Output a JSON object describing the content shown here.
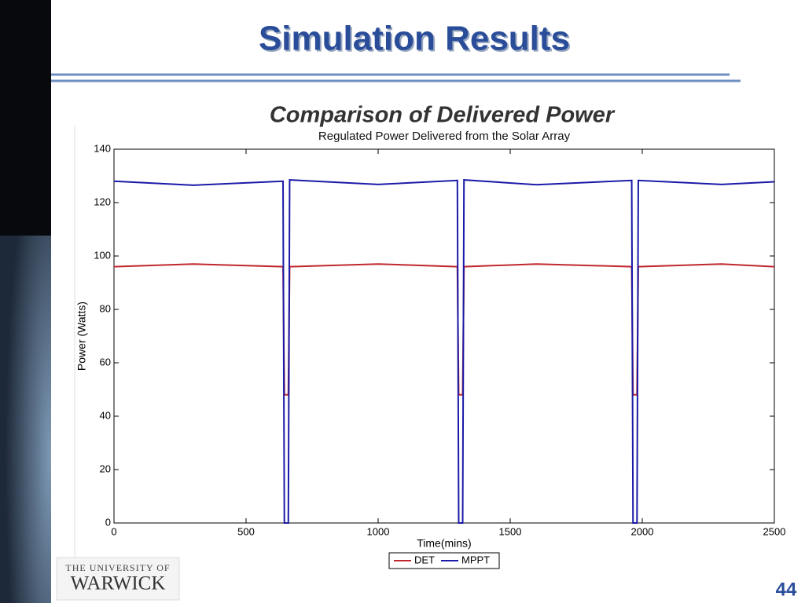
{
  "slide": {
    "title": "Simulation Results",
    "subtitle": "Comparison of Delivered Power",
    "logo_line1": "THE UNIVERSITY OF",
    "logo_line2": "WARWICK",
    "page_number": "44"
  },
  "chart_data": {
    "type": "line",
    "title": "Regulated Power Delivered from the Solar Array",
    "x_label": "Time(mins)",
    "y_label": "Power (Watts)",
    "x": [
      0,
      300,
      640,
      645,
      660,
      665,
      1000,
      1300,
      1305,
      1320,
      1325,
      1600,
      1960,
      1965,
      1980,
      1985,
      2300,
      2500
    ],
    "series": [
      {
        "name": "DET",
        "color": "#c0282d",
        "values": [
          96,
          97,
          96,
          48,
          48,
          96,
          97,
          96,
          48,
          48,
          96,
          97,
          96,
          48,
          48,
          96,
          97,
          96
        ]
      },
      {
        "name": "MPPT",
        "color": "#1a1aa8",
        "values": [
          128,
          126.5,
          128,
          0,
          0,
          128.5,
          126.8,
          128.3,
          0,
          0,
          128.5,
          126.7,
          128.3,
          0,
          0,
          128.3,
          126.8,
          127.8
        ]
      }
    ],
    "xlim": [
      0,
      2500
    ],
    "xticks": [
      0,
      500,
      1000,
      1500,
      2000,
      2500
    ],
    "ylim": [
      0,
      140
    ],
    "yticks": [
      0,
      20,
      40,
      60,
      80,
      100,
      120,
      140
    ],
    "grid": false,
    "legend": "bottom"
  }
}
